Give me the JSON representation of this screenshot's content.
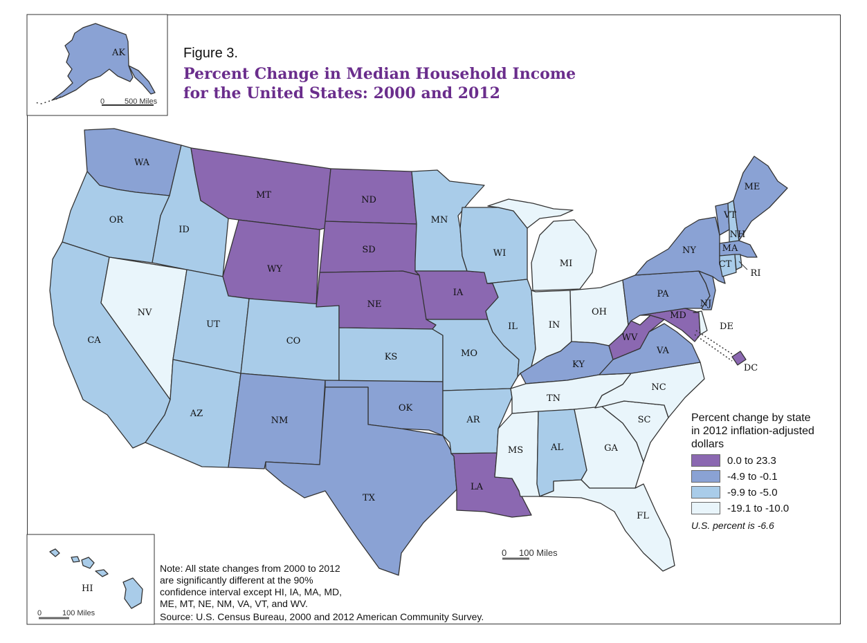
{
  "figure_number": "Figure 3.",
  "title_line1": "Percent Change in Median Household Income",
  "title_line2": "for the United States: 2000 and 2012",
  "colors": {
    "c1": "#8b68b1",
    "c2": "#8aa2d4",
    "c3": "#a9cce9",
    "c4": "#e9f5fb",
    "border": "#333333"
  },
  "legend": {
    "title_line1": "Percent change by state",
    "title_line2": "in 2012 inflation-adjusted",
    "title_line3": "dollars",
    "items": [
      {
        "label": "0.0 to 23.3",
        "color": "#8b68b1"
      },
      {
        "label": "-4.9 to -0.1",
        "color": "#8aa2d4"
      },
      {
        "label": "-9.9 to -5.0",
        "color": "#a9cce9"
      },
      {
        "label": "-19.1 to -10.0",
        "color": "#e9f5fb"
      }
    ],
    "us_percent": "U.S. percent is -6.6"
  },
  "note": {
    "line1": "Note: All state changes from 2000 to 2012",
    "line2": "are significantly different at the 90%",
    "line3": "confidence interval except HI, IA, MA, MD,",
    "line4": "ME, MT, NE, NM, VA, VT, and WV."
  },
  "source": "Source: U.S. Census Bureau, 2000 and 2012 American Community Survey.",
  "scales": {
    "alaska": {
      "zero": "0",
      "value": "500 Miles"
    },
    "main": {
      "zero": "0",
      "value": "100 Miles"
    },
    "hawaii": {
      "zero": "0",
      "value": "100 Miles"
    }
  },
  "states": {
    "WA": {
      "label": "WA",
      "class": "c2"
    },
    "OR": {
      "label": "OR",
      "class": "c3"
    },
    "CA": {
      "label": "CA",
      "class": "c3"
    },
    "NV": {
      "label": "NV",
      "class": "c4"
    },
    "ID": {
      "label": "ID",
      "class": "c3"
    },
    "MT": {
      "label": "MT",
      "class": "c1"
    },
    "WY": {
      "label": "WY",
      "class": "c1"
    },
    "UT": {
      "label": "UT",
      "class": "c3"
    },
    "AZ": {
      "label": "AZ",
      "class": "c3"
    },
    "CO": {
      "label": "CO",
      "class": "c3"
    },
    "NM": {
      "label": "NM",
      "class": "c2"
    },
    "ND": {
      "label": "ND",
      "class": "c1"
    },
    "SD": {
      "label": "SD",
      "class": "c1"
    },
    "NE": {
      "label": "NE",
      "class": "c1"
    },
    "KS": {
      "label": "KS",
      "class": "c3"
    },
    "OK": {
      "label": "OK",
      "class": "c2"
    },
    "TX": {
      "label": "TX",
      "class": "c2"
    },
    "MN": {
      "label": "MN",
      "class": "c3"
    },
    "IA": {
      "label": "IA",
      "class": "c1"
    },
    "MO": {
      "label": "MO",
      "class": "c3"
    },
    "AR": {
      "label": "AR",
      "class": "c3"
    },
    "LA": {
      "label": "LA",
      "class": "c1"
    },
    "WI": {
      "label": "WI",
      "class": "c3"
    },
    "IL": {
      "label": "IL",
      "class": "c3"
    },
    "MI": {
      "label": "MI",
      "class": "c4"
    },
    "IN": {
      "label": "IN",
      "class": "c4"
    },
    "OH": {
      "label": "OH",
      "class": "c4"
    },
    "KY": {
      "label": "KY",
      "class": "c2"
    },
    "TN": {
      "label": "TN",
      "class": "c4"
    },
    "MS": {
      "label": "MS",
      "class": "c4"
    },
    "AL": {
      "label": "AL",
      "class": "c3"
    },
    "GA": {
      "label": "GA",
      "class": "c4"
    },
    "FL": {
      "label": "FL",
      "class": "c4"
    },
    "SC": {
      "label": "SC",
      "class": "c4"
    },
    "NC": {
      "label": "NC",
      "class": "c4"
    },
    "VA": {
      "label": "VA",
      "class": "c2"
    },
    "WV": {
      "label": "WV",
      "class": "c1"
    },
    "MD": {
      "label": "MD",
      "class": "c1"
    },
    "DE": {
      "label": "DE",
      "class": "c4"
    },
    "NJ": {
      "label": "NJ",
      "class": "c2"
    },
    "PA": {
      "label": "PA",
      "class": "c2"
    },
    "NY": {
      "label": "NY",
      "class": "c2"
    },
    "CT": {
      "label": "CT",
      "class": "c3"
    },
    "RI": {
      "label": "RI",
      "class": "c3"
    },
    "MA": {
      "label": "MA",
      "class": "c2"
    },
    "VT": {
      "label": "VT",
      "class": "c2"
    },
    "NH": {
      "label": "NH",
      "class": "c3"
    },
    "ME": {
      "label": "ME",
      "class": "c2"
    },
    "DC": {
      "label": "DC",
      "class": "c1"
    },
    "AK": {
      "label": "AK",
      "class": "c2"
    },
    "HI": {
      "label": "HI",
      "class": "c3"
    }
  }
}
